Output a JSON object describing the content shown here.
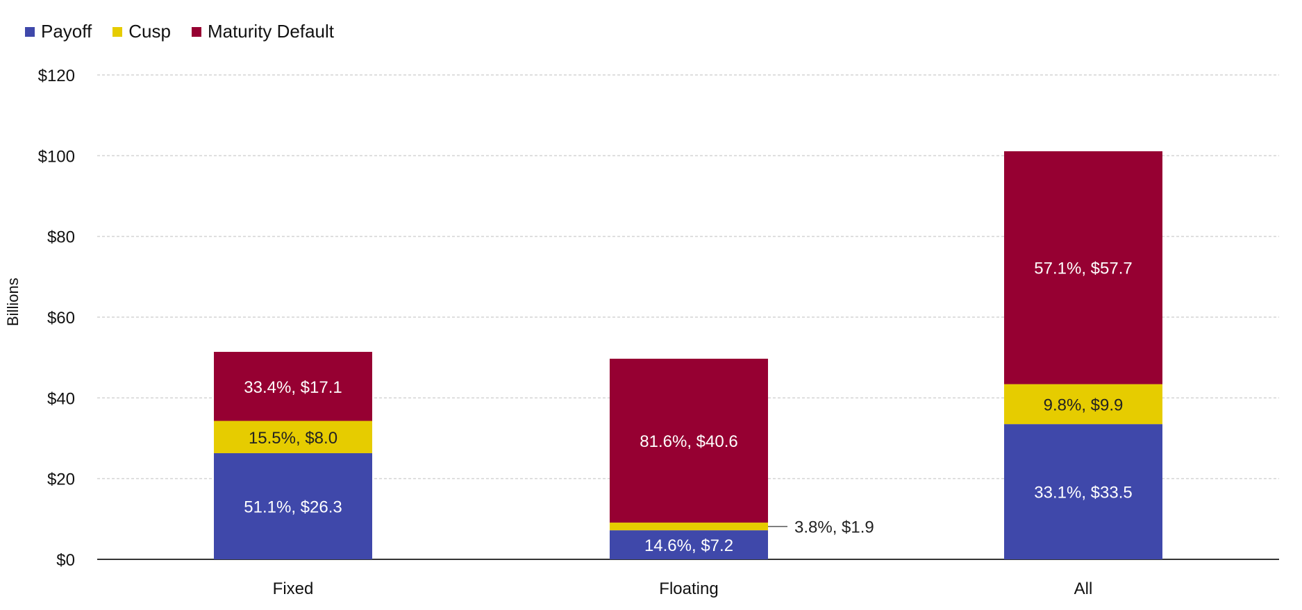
{
  "chart_data": {
    "type": "bar",
    "stacked": true,
    "categories": [
      "Fixed",
      "Floating",
      "All"
    ],
    "series": [
      {
        "name": "Payoff",
        "color": "#3f48aa",
        "values": [
          26.3,
          7.2,
          33.5
        ],
        "labels": [
          "51.1%, $26.3",
          "14.6%, $7.2",
          "33.1%, $33.5"
        ]
      },
      {
        "name": "Cusp",
        "color": "#e6cc00",
        "values": [
          8.0,
          1.9,
          9.9
        ],
        "labels": [
          "15.5%, $8.0",
          "3.8%, $1.9",
          "9.8%, $9.9"
        ]
      },
      {
        "name": "Maturity Default",
        "color": "#960032",
        "values": [
          17.1,
          40.6,
          57.7
        ],
        "labels": [
          "33.4%, $17.1",
          "81.6%, $40.6",
          "57.1%, $57.7"
        ]
      }
    ],
    "ylabel": "Billions",
    "ylim": [
      0,
      120
    ],
    "yticks": [
      "$0",
      "$20",
      "$40",
      "$60",
      "$80",
      "$100",
      "$120"
    ],
    "ytick_values": [
      0,
      20,
      40,
      60,
      80,
      100,
      120
    ],
    "grid": true,
    "legend_position": "top-left"
  }
}
